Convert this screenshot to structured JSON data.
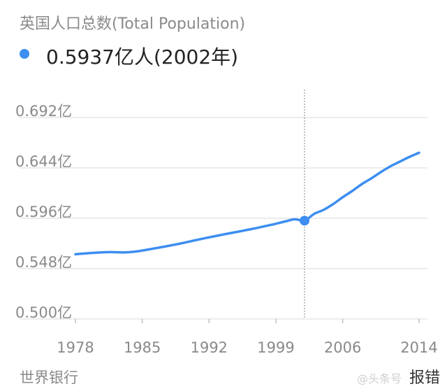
{
  "tooltip": {
    "text": "0.5937亿人(2002年)"
  },
  "source": "世界银行",
  "watermark": {
    "logo": "@头条号",
    "report": "报错"
  },
  "colors": {
    "line": "#3d8ef0",
    "grid": "#e6e6e6",
    "axis_text": "#8a8a8a",
    "crosshair": "#999999"
  },
  "chart_data": {
    "type": "line",
    "title": "英国人口总数(Total Population)",
    "xlabel": "",
    "ylabel": "",
    "ylim": [
      0.5,
      0.692
    ],
    "xlim": [
      1978,
      2014
    ],
    "y_ticks": [
      0.692,
      0.644,
      0.596,
      0.548,
      0.5
    ],
    "y_tick_labels": [
      "0.692亿",
      "0.644亿",
      "0.596亿",
      "0.548亿",
      "0.500亿"
    ],
    "x_ticks": [
      1978,
      1985,
      1992,
      1999,
      2006,
      2014
    ],
    "x_tick_labels": [
      "1978",
      "1985",
      "1992",
      "1999",
      "2006",
      "2014"
    ],
    "highlight": {
      "x": 2002,
      "y": 0.5937
    },
    "series": [
      {
        "values": [
          [
            1978,
            0.5617
          ],
          [
            1979,
            0.5624
          ],
          [
            1980,
            0.5631
          ],
          [
            1981,
            0.5636
          ],
          [
            1982,
            0.5637
          ],
          [
            1983,
            0.5634
          ],
          [
            1984,
            0.5639
          ],
          [
            1985,
            0.5652
          ],
          [
            1986,
            0.5668
          ],
          [
            1987,
            0.5684
          ],
          [
            1988,
            0.5701
          ],
          [
            1989,
            0.5719
          ],
          [
            1990,
            0.5739
          ],
          [
            1991,
            0.5759
          ],
          [
            1992,
            0.5778
          ],
          [
            1993,
            0.5796
          ],
          [
            1994,
            0.5814
          ],
          [
            1995,
            0.5831
          ],
          [
            1996,
            0.5849
          ],
          [
            1997,
            0.5867
          ],
          [
            1998,
            0.5887
          ],
          [
            1999,
            0.5907
          ],
          [
            2000,
            0.593
          ],
          [
            2001,
            0.595
          ],
          [
            2002,
            0.5937
          ],
          [
            2003,
            0.6001
          ],
          [
            2004,
            0.604
          ],
          [
            2005,
            0.6095
          ],
          [
            2006,
            0.616
          ],
          [
            2007,
            0.622
          ],
          [
            2008,
            0.6285
          ],
          [
            2009,
            0.634
          ],
          [
            2010,
            0.64
          ],
          [
            2011,
            0.6455
          ],
          [
            2012,
            0.65
          ],
          [
            2013,
            0.6545
          ],
          [
            2014,
            0.6584
          ]
        ]
      }
    ]
  }
}
